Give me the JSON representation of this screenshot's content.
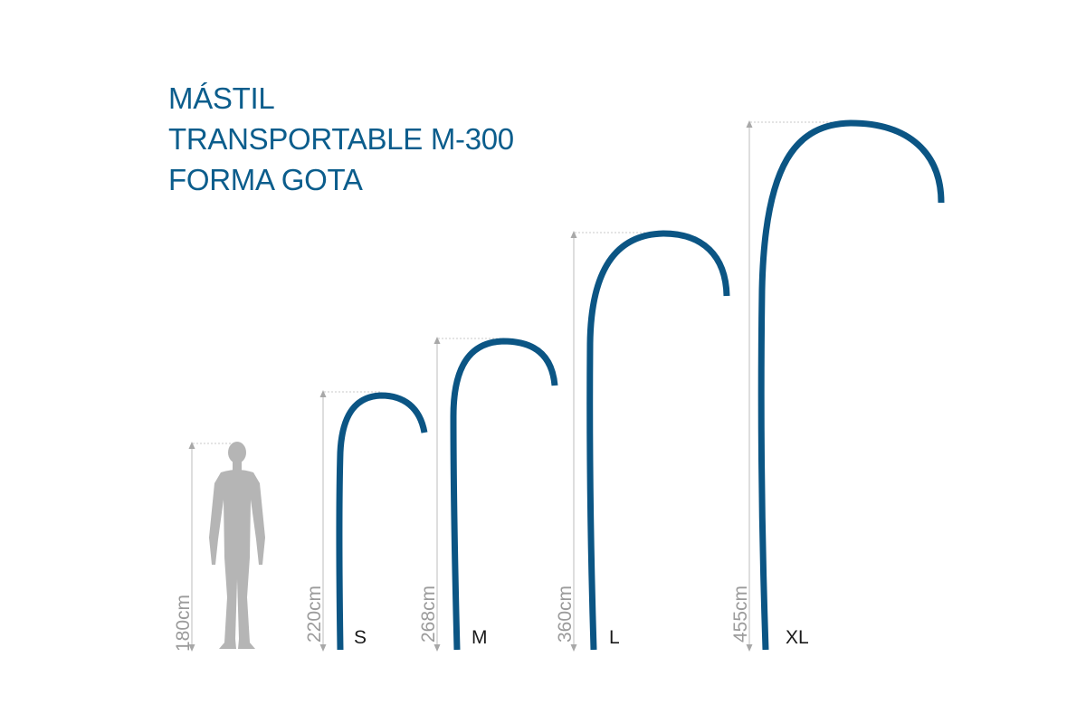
{
  "title_lines": [
    "MÁSTIL",
    "TRANSPORTABLE M-300",
    "FORMA GOTA"
  ],
  "reference": {
    "height_label": "180cm",
    "icon": "human-silhouette-icon",
    "height_cm": 180
  },
  "masts": [
    {
      "size": "S",
      "height_label": "220cm",
      "height_cm": 220
    },
    {
      "size": "M",
      "height_label": "268cm",
      "height_cm": 268
    },
    {
      "size": "L",
      "height_label": "360cm",
      "height_cm": 360
    },
    {
      "size": "XL",
      "height_label": "455cm",
      "height_cm": 455
    }
  ],
  "colors": {
    "title": "#0b5d8c",
    "pole": "#0b5584",
    "measure": "#c9c9c9",
    "figure": "#b5b5b5"
  }
}
